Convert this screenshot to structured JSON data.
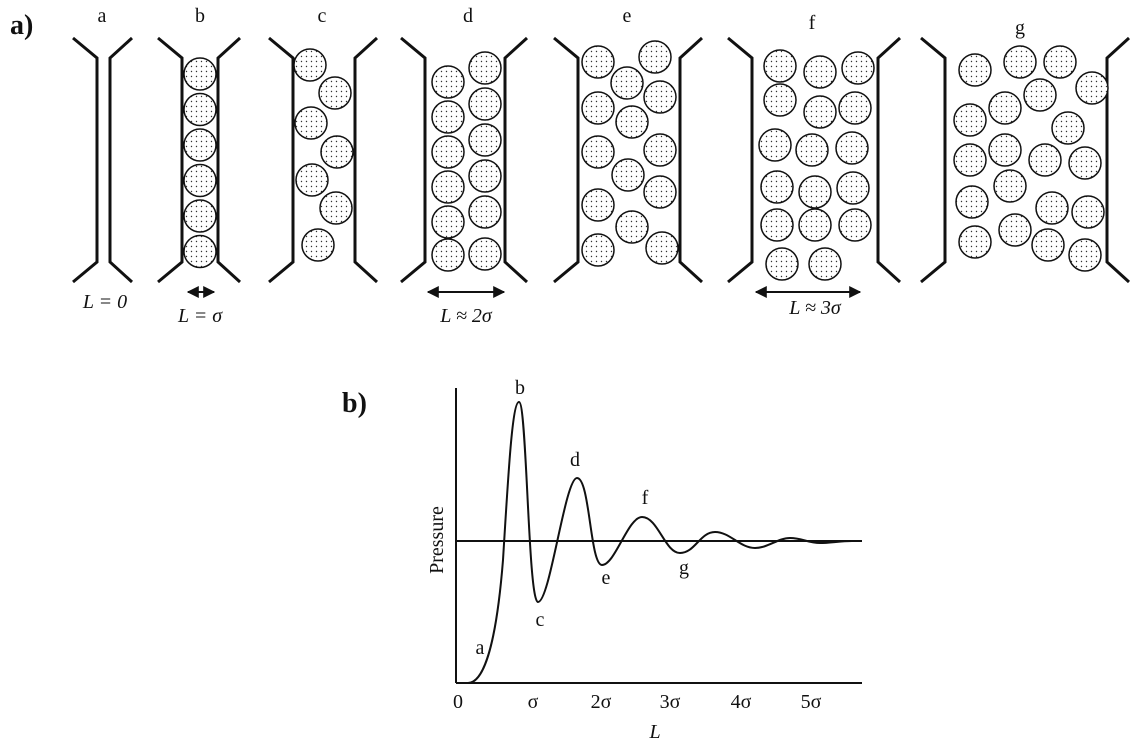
{
  "part_a": {
    "label": "a)",
    "panels": [
      {
        "label": "a"
      },
      {
        "label": "b"
      },
      {
        "label": "c"
      },
      {
        "label": "d"
      },
      {
        "label": "e"
      },
      {
        "label": "f"
      },
      {
        "label": "g"
      }
    ],
    "gap_labels": [
      "L = 0",
      "L = σ",
      "L ≈ 2σ",
      "L ≈ 3σ"
    ]
  },
  "part_b": {
    "label": "b)",
    "y_label": "Pressure",
    "x_label": "L",
    "x_ticks": [
      "0",
      "σ",
      "2σ",
      "3σ",
      "4σ",
      "5σ"
    ],
    "point_labels": [
      "a",
      "b",
      "c",
      "d",
      "e",
      "f",
      "g"
    ]
  }
}
